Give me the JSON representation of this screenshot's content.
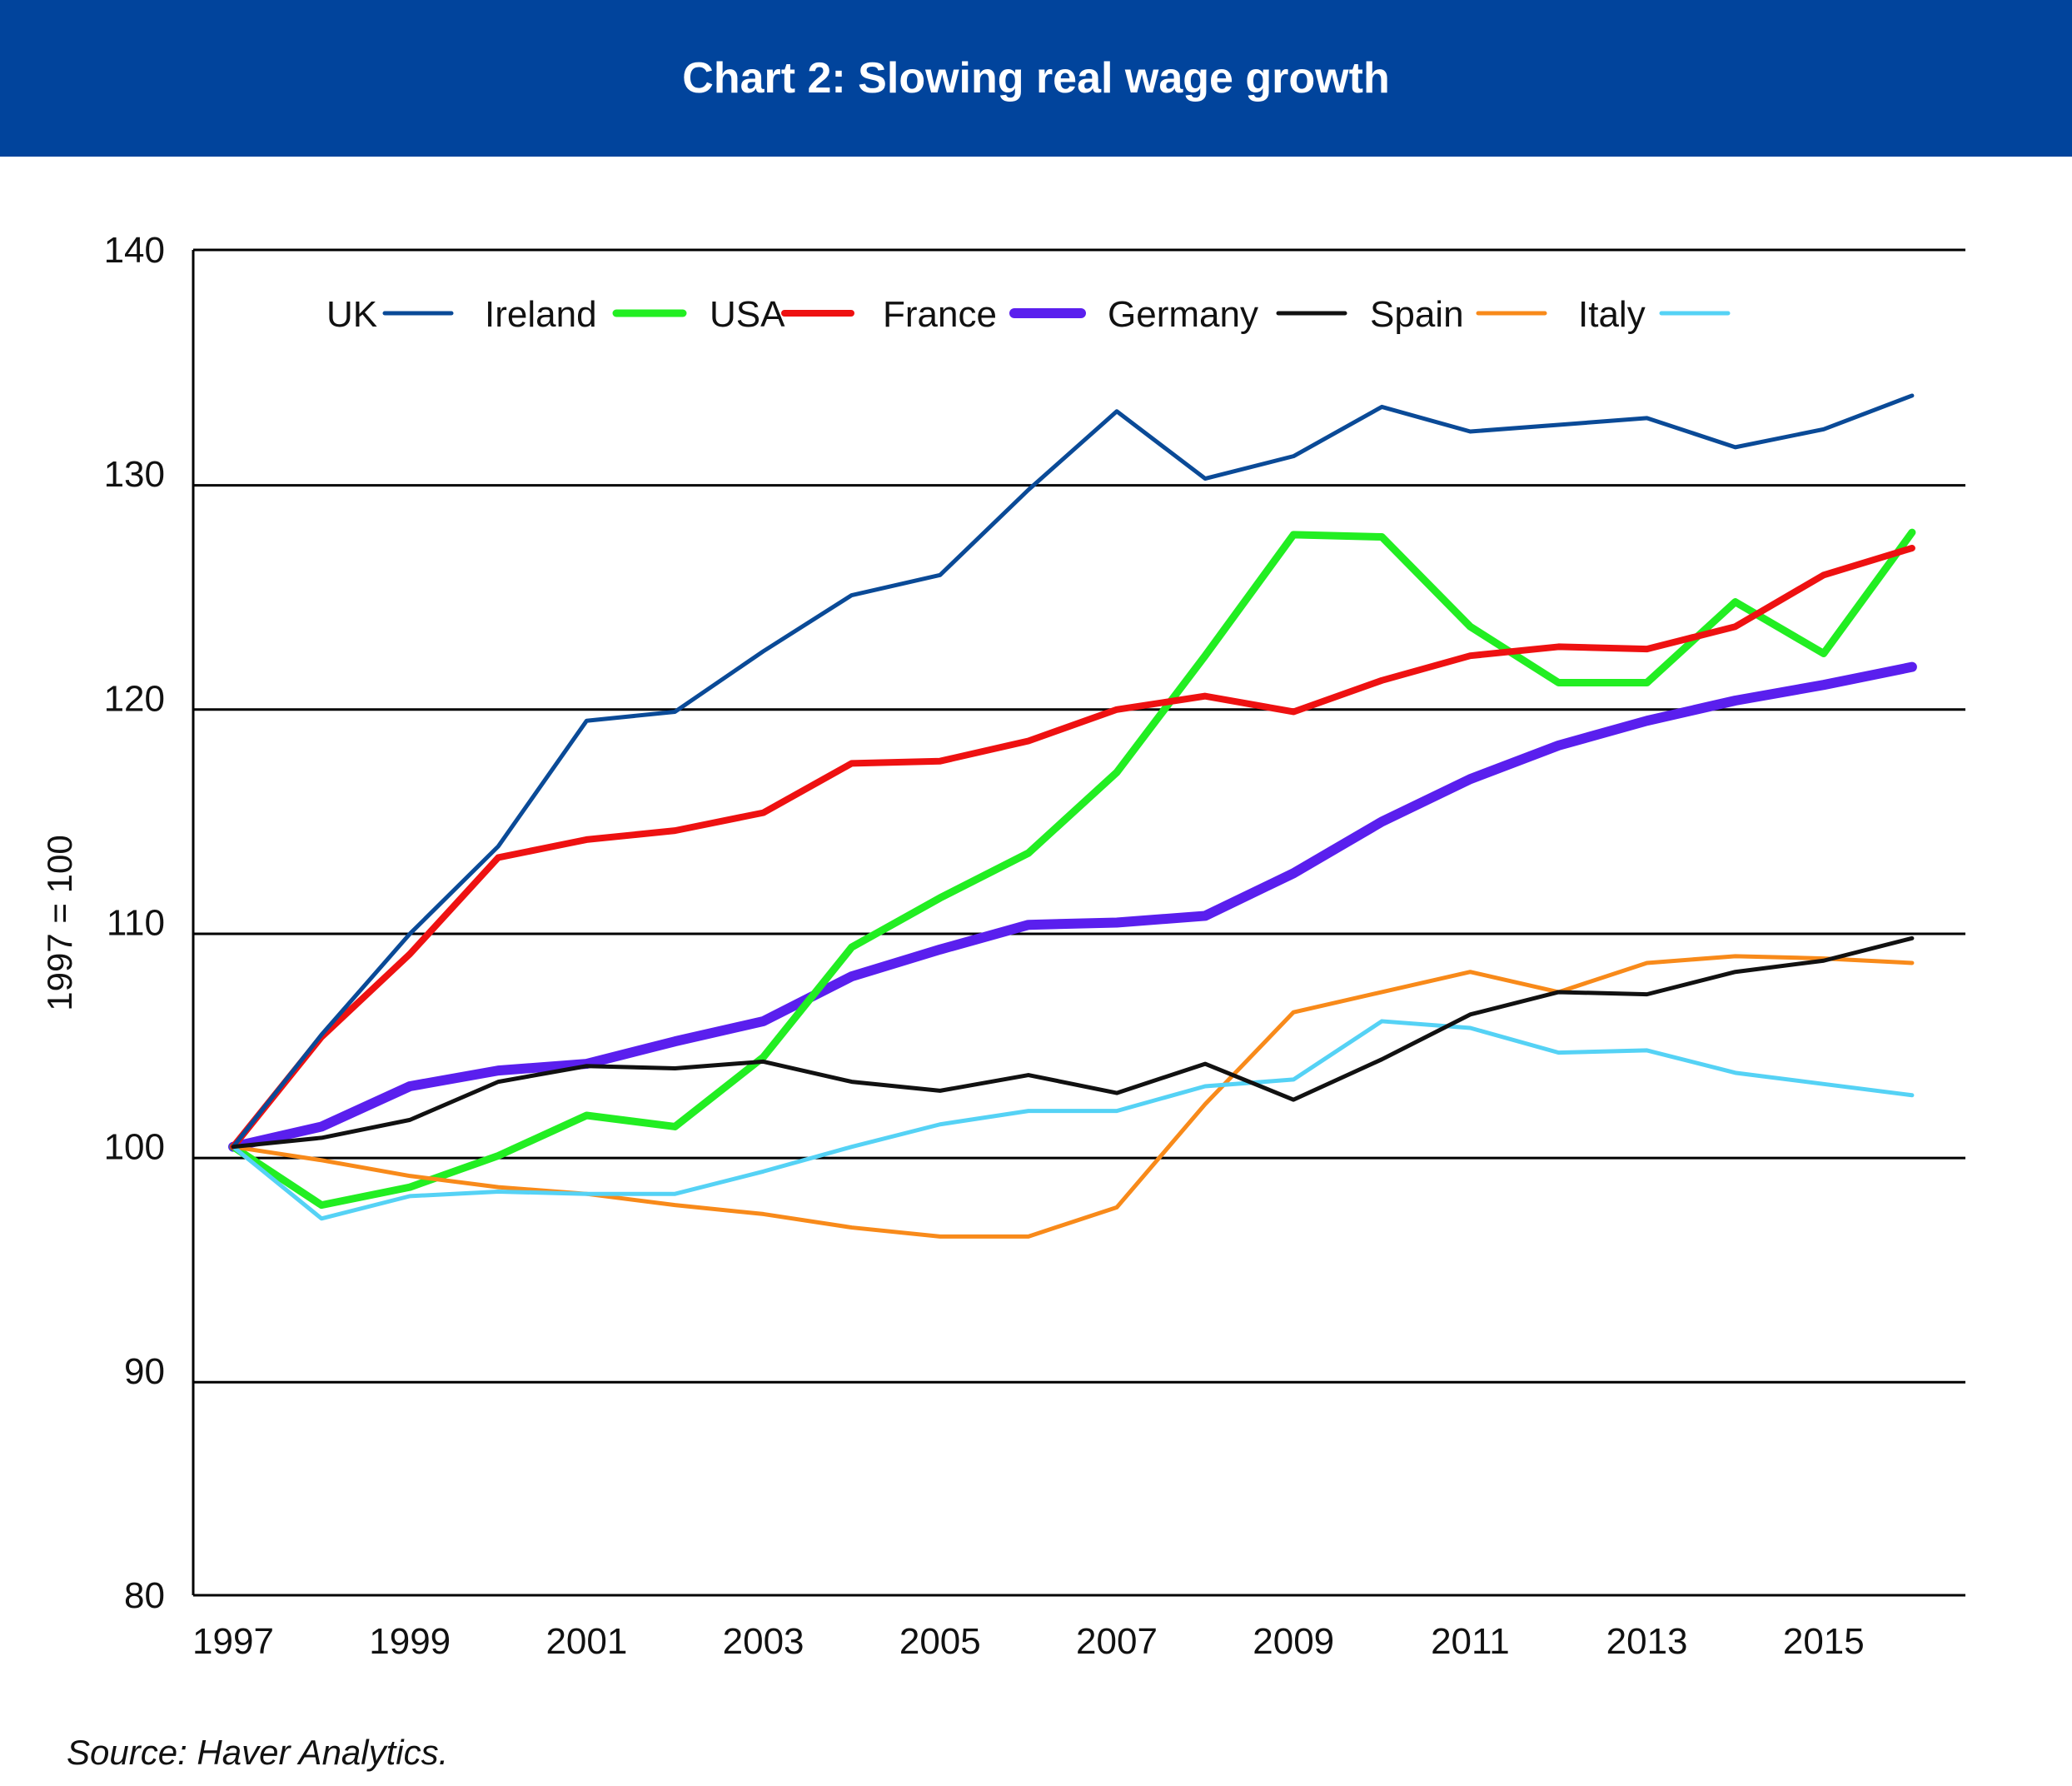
{
  "colors": {
    "header_bg": "#01449C",
    "UK": "#0A4A97",
    "Ireland": "#22EE22",
    "USA": "#EE1111",
    "France": "#5A1FEE",
    "Germany": "#111111",
    "Spain": "#F88A1A",
    "Italy": "#55D2F5"
  },
  "chart_data": {
    "type": "line",
    "title": "Chart 2: Slowing real wage growth",
    "xlabel": "",
    "ylabel": "1997 = 100",
    "source": "Source: Haver Analytics.",
    "ylim": [
      80,
      140
    ],
    "xlim": [
      1997,
      2016
    ],
    "yticks": [
      "140",
      "130",
      "120",
      "110",
      "100",
      "90",
      "80"
    ],
    "xticks": [
      "1997",
      "1999",
      "2001",
      "2003",
      "2005",
      "2007",
      "2009",
      "2011",
      "2013",
      "2015"
    ],
    "grid": "horizontal",
    "legend_position": "top",
    "x": [
      1997,
      1998,
      1999,
      2000,
      2001,
      2002,
      2003,
      2004,
      2005,
      2006,
      2007,
      2008,
      2009,
      2010,
      2011,
      2012,
      2013,
      2014,
      2015,
      2016
    ],
    "series": [
      {
        "name": "UK",
        "values": [
          100,
          105.0,
          109.5,
          113.4,
          119.0,
          119.4,
          122.1,
          124.6,
          125.5,
          129.3,
          132.8,
          129.8,
          130.8,
          133.0,
          131.9,
          132.2,
          132.5,
          131.2,
          132.0,
          133.5
        ]
      },
      {
        "name": "Ireland",
        "values": [
          100,
          97.4,
          98.2,
          99.6,
          101.4,
          100.9,
          104.0,
          108.9,
          111.1,
          113.1,
          116.7,
          121.9,
          127.3,
          127.2,
          123.2,
          120.7,
          120.7,
          124.3,
          122.0,
          127.4
        ]
      },
      {
        "name": "USA",
        "values": [
          100,
          104.9,
          108.6,
          112.9,
          113.7,
          114.1,
          114.9,
          117.1,
          117.2,
          118.1,
          119.5,
          120.1,
          119.4,
          120.8,
          121.9,
          122.3,
          122.2,
          123.2,
          125.5,
          126.7
        ]
      },
      {
        "name": "France",
        "values": [
          100,
          100.9,
          102.7,
          103.4,
          103.7,
          104.7,
          105.6,
          107.6,
          108.8,
          109.9,
          110.0,
          110.3,
          112.2,
          114.5,
          116.4,
          117.9,
          119.0,
          119.9,
          120.6,
          121.4
        ]
      },
      {
        "name": "Germany",
        "values": [
          100,
          100.4,
          101.2,
          102.9,
          103.6,
          103.5,
          103.8,
          102.9,
          102.5,
          103.2,
          102.4,
          103.7,
          102.1,
          103.9,
          105.9,
          106.9,
          106.8,
          107.8,
          108.3,
          109.3
        ]
      },
      {
        "name": "Spain",
        "values": [
          100,
          99.4,
          98.7,
          98.2,
          97.9,
          97.4,
          97.0,
          96.4,
          96.0,
          96.0,
          97.3,
          101.9,
          106.0,
          106.9,
          107.8,
          106.9,
          108.2,
          108.5,
          108.4,
          108.2
        ]
      },
      {
        "name": "Italy",
        "values": [
          100,
          96.8,
          97.8,
          98.0,
          97.9,
          97.9,
          98.9,
          100.0,
          101.0,
          101.6,
          101.6,
          102.7,
          103.0,
          105.6,
          105.3,
          104.2,
          104.3,
          103.3,
          102.8,
          102.3
        ]
      }
    ]
  }
}
